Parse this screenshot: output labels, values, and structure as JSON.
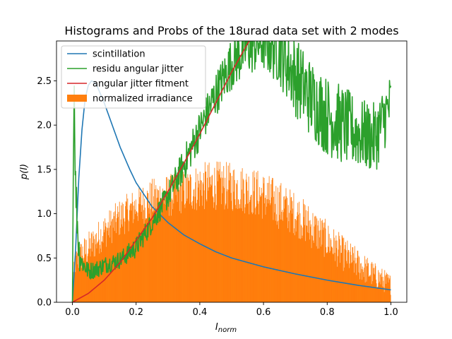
{
  "chart_data": {
    "type": "line",
    "title": "Histograms and Probs of the 18urad data set with 2 modes",
    "xlabel": "I_norm",
    "xlabel_main": "I",
    "xlabel_sub": "norm",
    "ylabel": "p(I)",
    "xlim": [
      -0.05,
      1.05
    ],
    "ylim": [
      0,
      2.95
    ],
    "xticks": [
      0.0,
      0.2,
      0.4,
      0.6,
      0.8,
      1.0
    ],
    "xtick_labels": [
      "0.0",
      "0.2",
      "0.4",
      "0.6",
      "0.8",
      "1.0"
    ],
    "yticks": [
      0.0,
      0.5,
      1.0,
      1.5,
      2.0,
      2.5
    ],
    "ytick_labels": [
      "0.0",
      "0.5",
      "1.0",
      "1.5",
      "2.0",
      "2.5"
    ],
    "grid": false,
    "legend_position": "top-left",
    "series": [
      {
        "name": "scintillation",
        "kind": "line",
        "color": "#1f77b4",
        "x": [
          0.0,
          0.01,
          0.02,
          0.03,
          0.04,
          0.05,
          0.06,
          0.07,
          0.08,
          0.1,
          0.12,
          0.15,
          0.18,
          0.2,
          0.25,
          0.3,
          0.35,
          0.4,
          0.45,
          0.5,
          0.6,
          0.7,
          0.8,
          0.9,
          1.0
        ],
        "y": [
          0.0,
          0.6,
          1.4,
          1.95,
          2.3,
          2.45,
          2.5,
          2.48,
          2.42,
          2.25,
          2.05,
          1.75,
          1.5,
          1.35,
          1.08,
          0.9,
          0.76,
          0.66,
          0.57,
          0.5,
          0.4,
          0.32,
          0.25,
          0.19,
          0.14
        ]
      },
      {
        "name": "residu angular jitter",
        "kind": "line",
        "color": "#2ca02c",
        "x": [
          0.0,
          0.005,
          0.01,
          0.02,
          0.03,
          0.05,
          0.08,
          0.1,
          0.15,
          0.2,
          0.25,
          0.3,
          0.35,
          0.4,
          0.45,
          0.5,
          0.55,
          0.6,
          0.65,
          0.7,
          0.75,
          0.8,
          0.85,
          0.9,
          0.95,
          1.0
        ],
        "y": [
          0.0,
          2.6,
          1.3,
          0.6,
          0.45,
          0.35,
          0.38,
          0.42,
          0.48,
          0.62,
          0.9,
          1.2,
          1.55,
          1.95,
          2.35,
          2.7,
          2.9,
          2.95,
          2.85,
          2.55,
          2.3,
          2.1,
          2.0,
          1.9,
          1.85,
          2.25
        ],
        "jitter_amplitude": [
          0.0,
          0.3,
          0.3,
          0.25,
          0.12,
          0.1,
          0.1,
          0.1,
          0.1,
          0.12,
          0.12,
          0.15,
          0.2,
          0.22,
          0.25,
          0.3,
          0.35,
          0.35,
          0.4,
          0.45,
          0.45,
          0.45,
          0.45,
          0.4,
          0.4,
          0.35
        ]
      },
      {
        "name": "angular jitter fitment",
        "kind": "line",
        "color": "#d62728",
        "x": [
          0.0,
          0.05,
          0.1,
          0.15,
          0.2,
          0.25,
          0.3,
          0.35,
          0.4,
          0.45,
          0.5,
          0.55,
          0.56
        ],
        "y": [
          0.0,
          0.1,
          0.25,
          0.45,
          0.7,
          0.95,
          1.25,
          1.57,
          1.9,
          2.25,
          2.6,
          2.92,
          2.97
        ]
      },
      {
        "name": "normalized irradiance",
        "kind": "histogram",
        "color": "#ff7f0e",
        "x": [
          0.0,
          0.003,
          0.01,
          0.02,
          0.05,
          0.1,
          0.15,
          0.2,
          0.25,
          0.3,
          0.35,
          0.4,
          0.45,
          0.5,
          0.55,
          0.6,
          0.65,
          0.7,
          0.75,
          0.8,
          0.85,
          0.9,
          0.95,
          1.0
        ],
        "y": [
          0.0,
          0.3,
          0.45,
          0.5,
          0.6,
          0.8,
          0.95,
          1.08,
          1.15,
          1.2,
          1.25,
          1.3,
          1.32,
          1.3,
          1.27,
          1.2,
          1.1,
          1.0,
          0.85,
          0.7,
          0.55,
          0.42,
          0.3,
          0.2
        ],
        "noise_amplitude": [
          0.0,
          0.1,
          0.15,
          0.18,
          0.2,
          0.2,
          0.22,
          0.22,
          0.25,
          0.25,
          0.25,
          0.28,
          0.28,
          0.28,
          0.28,
          0.28,
          0.28,
          0.25,
          0.25,
          0.22,
          0.2,
          0.18,
          0.15,
          0.12
        ],
        "bins": 700
      }
    ]
  }
}
